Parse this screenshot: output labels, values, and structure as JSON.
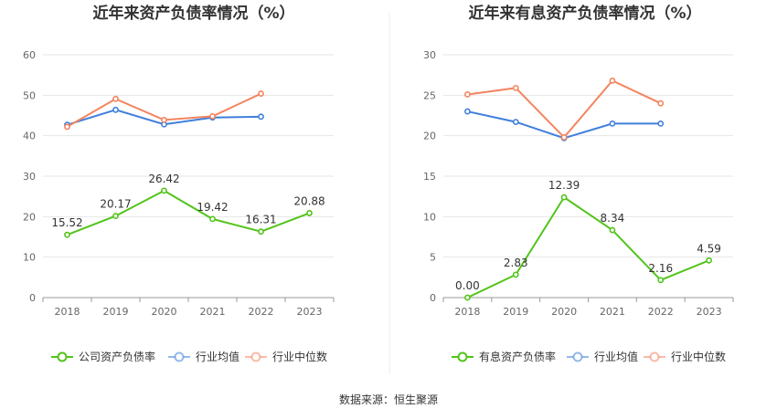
{
  "source_label": "数据来源：恒生聚源",
  "chart_data": [
    {
      "type": "line",
      "title": "近年来资产负债率情况（%）",
      "categories": [
        "2018",
        "2019",
        "2020",
        "2021",
        "2022",
        "2023"
      ],
      "ylim": [
        0,
        60
      ],
      "yticks": [
        0,
        10,
        20,
        30,
        40,
        50,
        60
      ],
      "grid": true,
      "legend_position": "bottom",
      "series": [
        {
          "name": "公司资产负债率",
          "color": "#52c41a",
          "values": [
            15.52,
            20.17,
            26.42,
            19.42,
            16.31,
            20.88
          ],
          "labels": [
            "15.52",
            "20.17",
            "26.42",
            "19.42",
            "16.31",
            "20.88"
          ]
        },
        {
          "name": "行业均值",
          "color": "#3f7fdb",
          "values": [
            42.7,
            46.4,
            42.8,
            44.5,
            44.7,
            null
          ]
        },
        {
          "name": "行业中位数",
          "color": "#f4845f",
          "values": [
            42.2,
            49.1,
            43.9,
            44.8,
            50.4,
            null
          ]
        }
      ]
    },
    {
      "type": "line",
      "title": "近年来有息资产负债率情况（%）",
      "categories": [
        "2018",
        "2019",
        "2020",
        "2021",
        "2022",
        "2023"
      ],
      "ylim": [
        0,
        30
      ],
      "yticks": [
        0,
        5,
        10,
        15,
        20,
        25,
        30
      ],
      "grid": true,
      "legend_position": "bottom",
      "series": [
        {
          "name": "有息资产负债率",
          "color": "#52c41a",
          "values": [
            0.0,
            2.83,
            12.39,
            8.34,
            2.16,
            4.59
          ],
          "labels": [
            "0.00",
            "2.83",
            "12.39",
            "8.34",
            "2.16",
            "4.59"
          ]
        },
        {
          "name": "行业均值",
          "color": "#3f7fdb",
          "values": [
            23.0,
            21.7,
            19.7,
            21.5,
            21.5,
            null
          ]
        },
        {
          "name": "行业中位数",
          "color": "#f4845f",
          "values": [
            25.1,
            25.9,
            19.8,
            26.8,
            24.0,
            null
          ]
        }
      ]
    }
  ]
}
